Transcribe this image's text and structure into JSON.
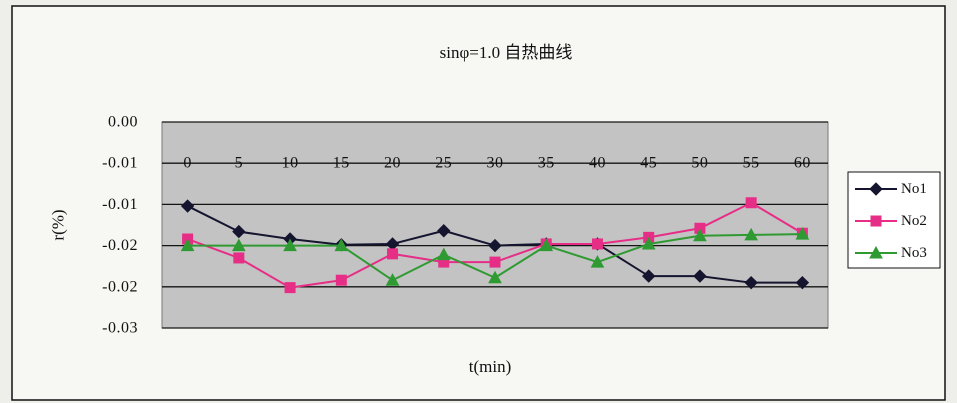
{
  "chart_data": {
    "type": "line",
    "title": "sinφ=1.0 自热曲线",
    "xlabel": "t(min)",
    "ylabel": "r(%)",
    "categories": [
      "0",
      "5",
      "10",
      "15",
      "20",
      "25",
      "30",
      "35",
      "40",
      "45",
      "50",
      "55",
      "60"
    ],
    "y_ticks": [
      0,
      -0.005,
      -0.01,
      -0.015,
      -0.02,
      -0.025
    ],
    "y_tick_labels": [
      "0.00",
      "-0.01",
      "-0.01",
      "-0.02",
      "-0.02",
      "-0.03"
    ],
    "ylim": [
      -0.025,
      0
    ],
    "x_axis_crossing": -0.005,
    "grid": true,
    "legend": "right",
    "plot_background": "#c3c3c3",
    "series": [
      {
        "name": "No1",
        "color": "#151530",
        "marker": "diamond",
        "values": [
          -0.0102,
          -0.0133,
          -0.0142,
          -0.0149,
          -0.0148,
          -0.0132,
          -0.015,
          -0.0148,
          -0.0148,
          -0.0187,
          -0.0187,
          -0.0195,
          -0.0195
        ]
      },
      {
        "name": "No2",
        "color": "#e62e86",
        "marker": "square",
        "values": [
          -0.0142,
          -0.0165,
          -0.0201,
          -0.0192,
          -0.016,
          -0.017,
          -0.017,
          -0.0148,
          -0.0148,
          -0.014,
          -0.0129,
          -0.0098,
          -0.0135
        ]
      },
      {
        "name": "No3",
        "color": "#2f9a32",
        "marker": "triangle",
        "values": [
          -0.015,
          -0.015,
          -0.015,
          -0.015,
          -0.0192,
          -0.0161,
          -0.0189,
          -0.015,
          -0.017,
          -0.0148,
          -0.0138,
          -0.0137,
          -0.0136
        ]
      }
    ]
  }
}
